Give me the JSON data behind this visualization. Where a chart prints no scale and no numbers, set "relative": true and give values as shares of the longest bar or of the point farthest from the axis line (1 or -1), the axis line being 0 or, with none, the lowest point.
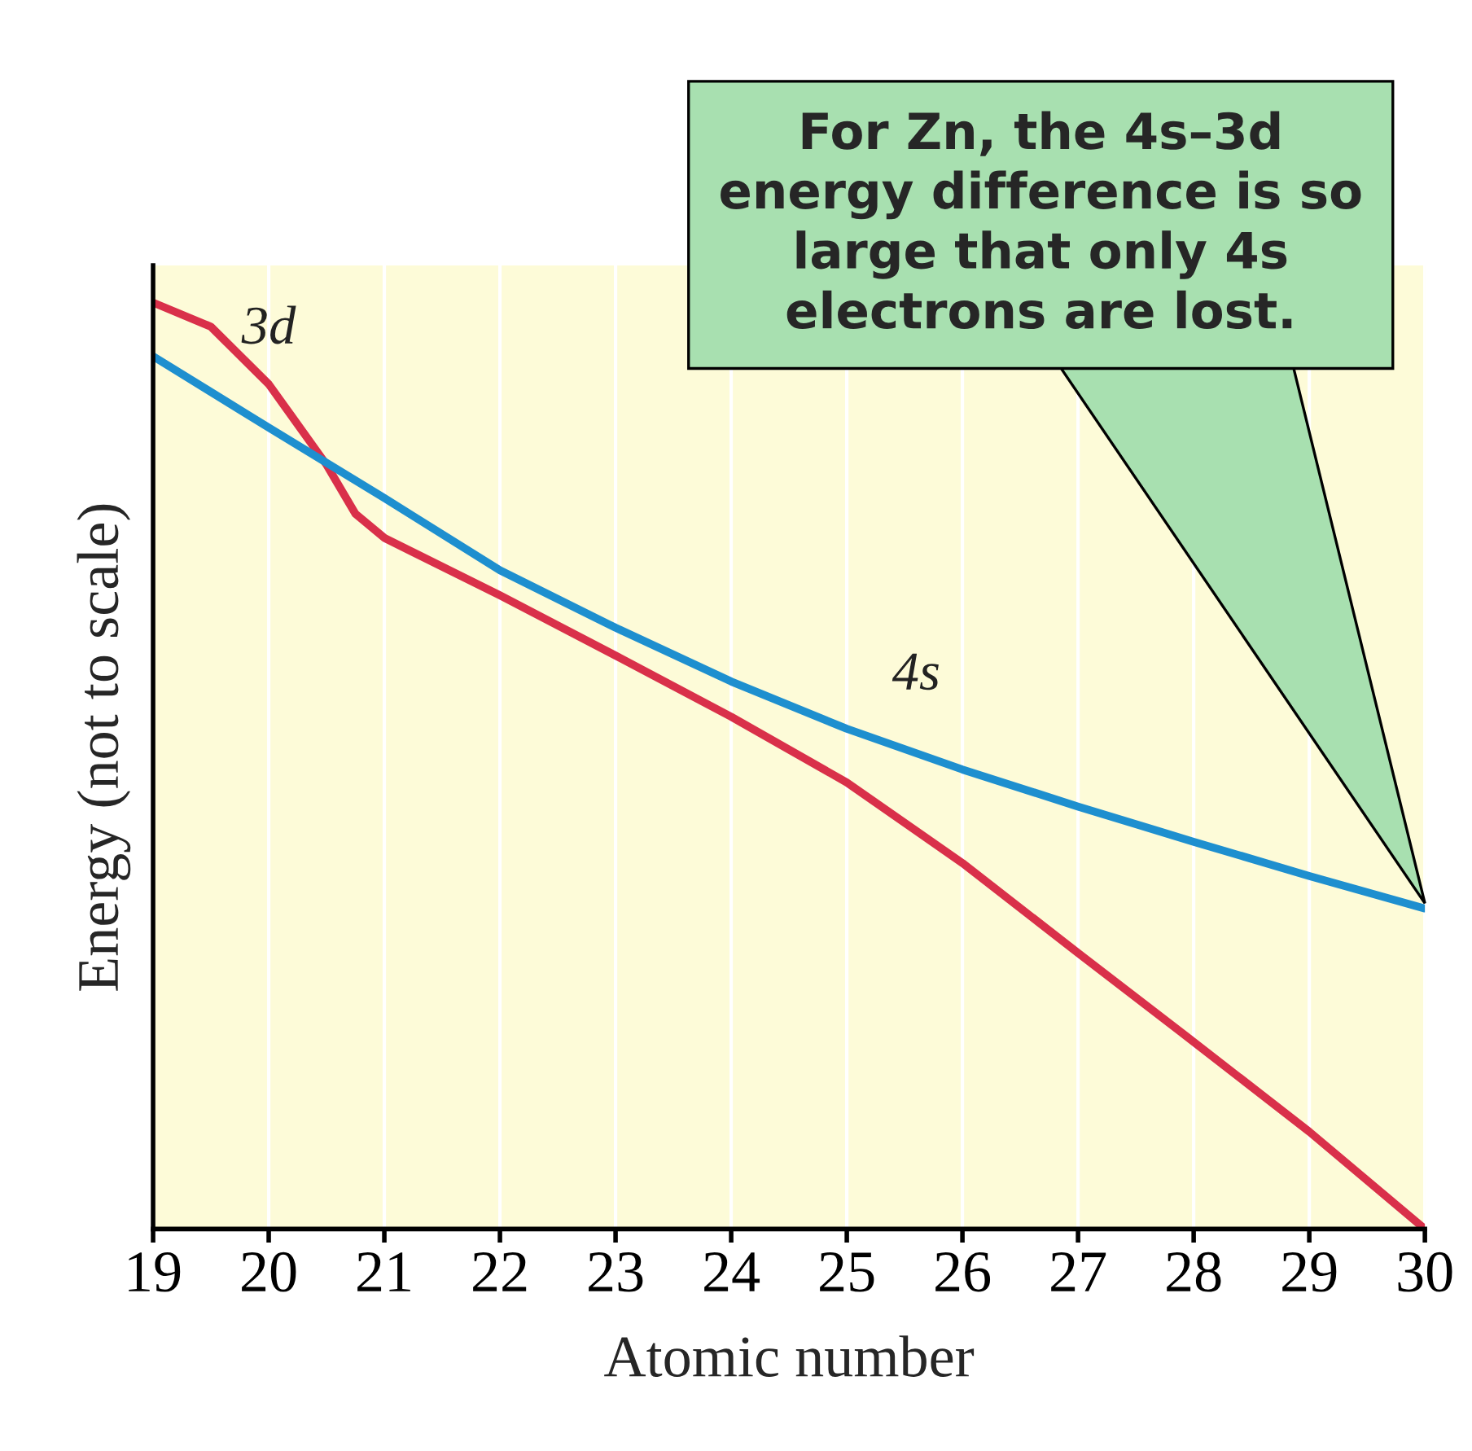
{
  "chart_data": {
    "type": "line",
    "xlabel": "Atomic number",
    "ylabel": "Energy (not to scale)",
    "relative": true,
    "xlim": [
      19,
      30
    ],
    "xticks": [
      19,
      20,
      21,
      22,
      23,
      24,
      25,
      26,
      27,
      28,
      29,
      30
    ],
    "grid": "x",
    "legend": false,
    "marker": "none",
    "line_style": "solid",
    "series": [
      {
        "name": "3d",
        "color": "#d9304a",
        "x": [
          19,
          19.5,
          20,
          20.5,
          20.75,
          21,
          22,
          23,
          24,
          25,
          26,
          27,
          28,
          29,
          30
        ],
        "values": [
          1.0,
          0.974,
          0.912,
          0.825,
          0.772,
          0.746,
          0.684,
          0.619,
          0.553,
          0.482,
          0.395,
          0.298,
          0.202,
          0.105,
          0.0
        ]
      },
      {
        "name": "4s",
        "color": "#1e8fcf",
        "x": [
          19,
          20,
          21,
          22,
          23,
          24,
          25,
          26,
          27,
          28,
          29,
          30
        ],
        "values": [
          0.942,
          0.865,
          0.789,
          0.711,
          0.649,
          0.591,
          0.54,
          0.496,
          0.456,
          0.418,
          0.381,
          0.346
        ]
      }
    ],
    "annotations": [
      "For Zn, the 4s–3d energy difference is so large that only 4s electrons are lost."
    ]
  }
}
